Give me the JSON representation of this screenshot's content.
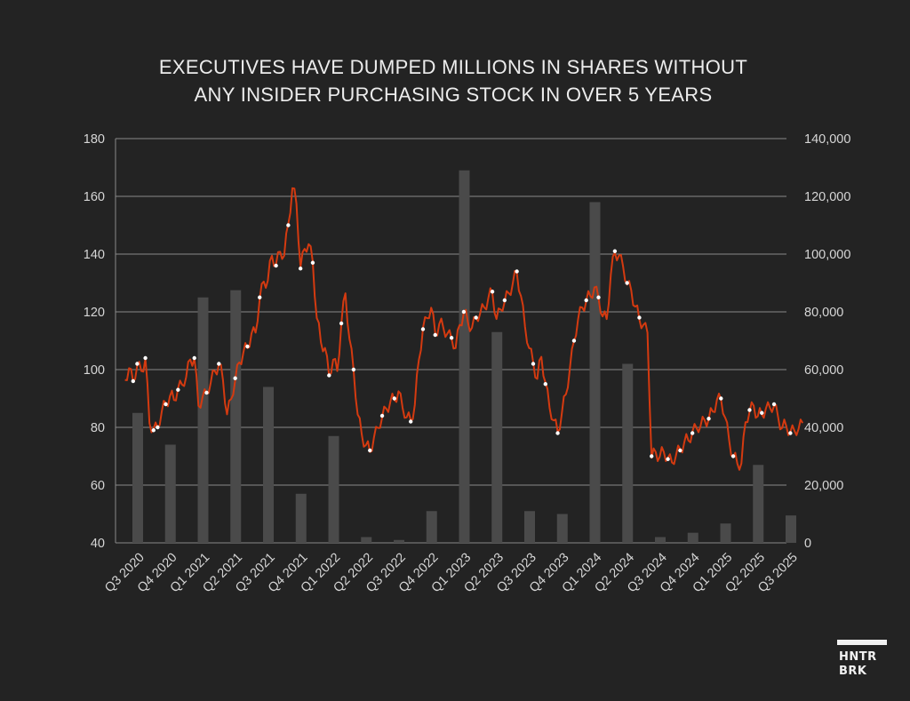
{
  "chart_data": {
    "type": "bar+line",
    "title_lines": [
      "EXECUTIVES HAVE DUMPED MILLIONS IN SHARES WITHOUT",
      "ANY INSIDER PURCHASING STOCK IN OVER 5 YEARS"
    ],
    "categories": [
      "Q3 2020",
      "Q4 2020",
      "Q1 2021",
      "Q2 2021",
      "Q3 2021",
      "Q4 2021",
      "Q1 2022",
      "Q2 2022",
      "Q3 2022",
      "Q4 2022",
      "Q1 2023",
      "Q2 2023",
      "Q3 2023",
      "Q4 2023",
      "Q1 2024",
      "Q2 2024",
      "Q3 2024",
      "Q4 2024",
      "Q1 2025",
      "Q2 2025",
      "Q3 2025"
    ],
    "left_axis": {
      "min": 40,
      "max": 180,
      "ticks": [
        "180",
        "160",
        "140",
        "120",
        "100",
        "80",
        "60",
        "40"
      ]
    },
    "right_axis": {
      "min": 0,
      "max": 140000,
      "ticks": [
        "140,000",
        "120,000",
        "100,000",
        "80,000",
        "60,000",
        "40,000",
        "20,000",
        "0"
      ]
    },
    "grid": true,
    "bars": {
      "axis": "right",
      "values": [
        45000,
        34000,
        85000,
        87500,
        54000,
        17000,
        37000,
        2000,
        1000,
        11000,
        129000,
        73000,
        11000,
        10000,
        118000,
        62000,
        2000,
        3500,
        6700,
        27000,
        9500
      ]
    },
    "price_series": {
      "axis": "left",
      "color": "#d43a10",
      "points_per_quarter": 8,
      "values": [
        97,
        100,
        96,
        102,
        99,
        104,
        82,
        79,
        80,
        86,
        88,
        91,
        90,
        93,
        95,
        98,
        103,
        104,
        88,
        90,
        92,
        96,
        99,
        102,
        97,
        84,
        90,
        97,
        102,
        106,
        108,
        112,
        113,
        125,
        130,
        131,
        140,
        136,
        141,
        140,
        150,
        163,
        158,
        135,
        142,
        144,
        137,
        118,
        110,
        107,
        98,
        104,
        99,
        116,
        127,
        110,
        100,
        85,
        77,
        74,
        72,
        76,
        80,
        84,
        86,
        89,
        90,
        92,
        87,
        84,
        82,
        88,
        104,
        114,
        118,
        122,
        112,
        116,
        115,
        112,
        111,
        108,
        115,
        120,
        117,
        114,
        118,
        120,
        121,
        125,
        127,
        117,
        121,
        124,
        126,
        130,
        134,
        125,
        115,
        108,
        102,
        97,
        105,
        95,
        87,
        83,
        78,
        85,
        92,
        100,
        110,
        118,
        121,
        124,
        126,
        128,
        125,
        119,
        117,
        133,
        141,
        139,
        136,
        130,
        127,
        122,
        118,
        115,
        113,
        70,
        71,
        70,
        72,
        69,
        68,
        71,
        72,
        75,
        76,
        78,
        80,
        81,
        82,
        83,
        86,
        89,
        90,
        84,
        75,
        70,
        68,
        67,
        82,
        86,
        87,
        84,
        85,
        86,
        87,
        88,
        83,
        80,
        81,
        78,
        79,
        80,
        81
      ]
    },
    "sale_markers": [
      0.01,
      0.02,
      0.03,
      0.04,
      0.05,
      0.06,
      0.08,
      0.1,
      0.12,
      0.14,
      0.16,
      0.18,
      0.2,
      0.22,
      0.24,
      0.26,
      0.28,
      0.3,
      0.32,
      0.34,
      0.36,
      0.38,
      0.4,
      0.42,
      0.44,
      0.46,
      0.48,
      0.5,
      0.52,
      0.54,
      0.56,
      0.58,
      0.6,
      0.62,
      0.64,
      0.66,
      0.68,
      0.7,
      0.72,
      0.74,
      0.76,
      0.78,
      0.8,
      0.82,
      0.84,
      0.86,
      0.88,
      0.9,
      0.92,
      0.94,
      0.96,
      0.98
    ]
  },
  "logo": {
    "line1": "HNTR",
    "line2": "BRK"
  }
}
